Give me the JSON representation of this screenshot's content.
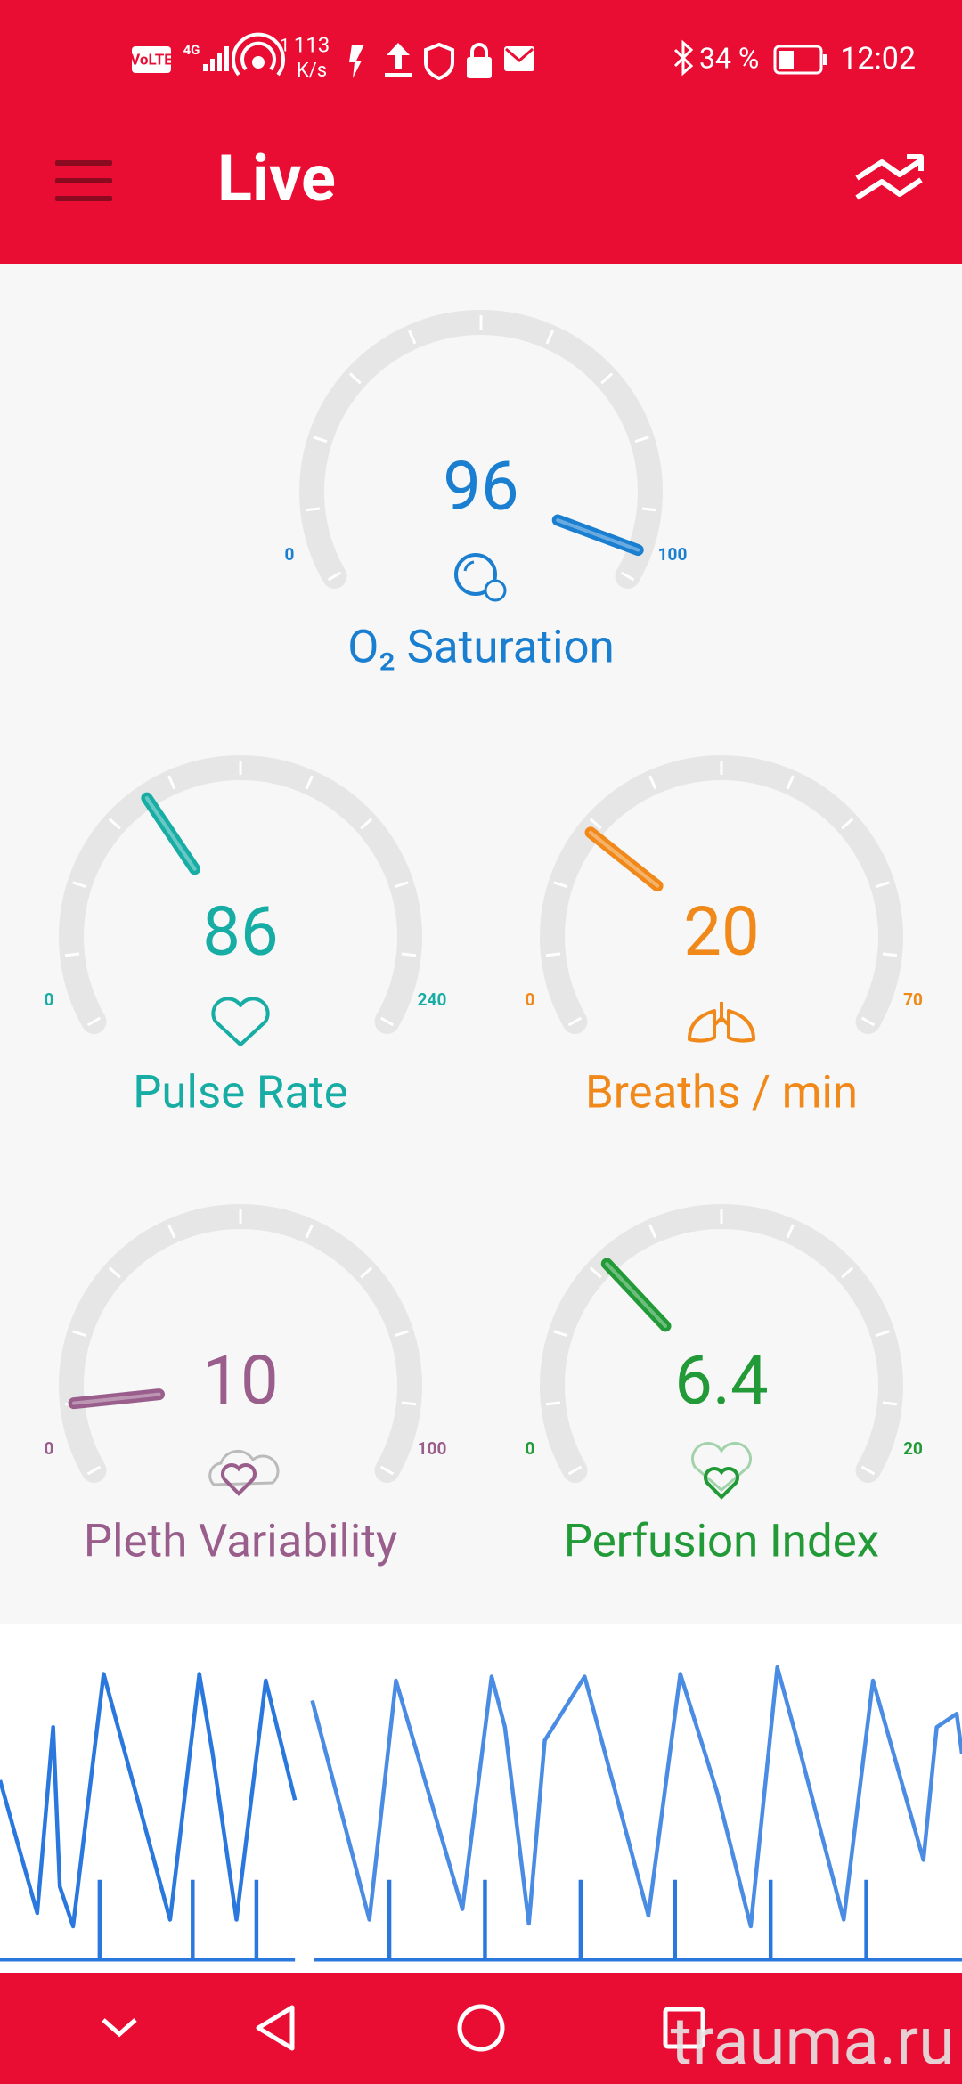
{
  "status_bar": {
    "network": "VoLTE",
    "signal": "4G",
    "hotspot_count": "1",
    "speed": "113",
    "speed_unit": "K/s",
    "battery": "34 %",
    "time": "12:02"
  },
  "header": {
    "title": "Live"
  },
  "gauges": [
    {
      "label": "O₂ Saturation",
      "value": 96,
      "min": 0,
      "max": 100,
      "color": "#1a7fd0"
    },
    {
      "label": "Pulse Rate",
      "value": 86,
      "min": 0,
      "max": 240,
      "color": "#17ada5"
    },
    {
      "label": "Breaths / min",
      "value": 20,
      "min": 0,
      "max": 70,
      "color": "#f0891a"
    },
    {
      "label": "Pleth Variability",
      "value": 10,
      "min": 0,
      "max": 100,
      "color": "#9a5e8c"
    },
    {
      "label": "Perfusion Index",
      "value": 6.4,
      "min": 0,
      "max": 20,
      "color": "#229a37"
    }
  ],
  "watermark": "trauma.ru"
}
